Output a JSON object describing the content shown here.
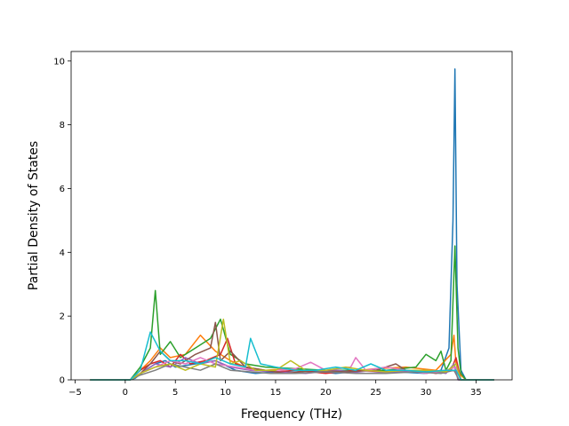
{
  "chart_data": {
    "type": "line",
    "title": "",
    "xlabel": "Frequency (THz)",
    "ylabel": "Partial Density of States",
    "xlim": [
      -5.4,
      38.6
    ],
    "ylim": [
      0,
      10.3
    ],
    "xticks": [
      -5,
      0,
      5,
      10,
      15,
      20,
      25,
      30,
      35
    ],
    "yticks": [
      0,
      2,
      4,
      6,
      8,
      10
    ],
    "xtick_labels": [
      "−5",
      "0",
      "5",
      "10",
      "15",
      "20",
      "25",
      "30",
      "35"
    ],
    "ytick_labels": [
      "0",
      "2",
      "4",
      "6",
      "8",
      "10"
    ],
    "grid": false,
    "legend": "none",
    "colors": [
      "#1f77b4",
      "#ff7f0e",
      "#2ca02c",
      "#d62728",
      "#9467bd",
      "#8c564b",
      "#e377c2",
      "#7f7f7f",
      "#bcbd22",
      "#17becf"
    ],
    "series": [
      {
        "color": "#1f77b4",
        "x": [
          -3.5,
          0.5,
          1.0,
          2.0,
          3.0,
          4.0,
          5.0,
          7.0,
          9.0,
          11.0,
          13.0,
          15.0,
          18.0,
          21.0,
          24.0,
          27.0,
          30.0,
          31.5,
          32.3,
          32.7,
          32.9,
          33.1,
          33.3,
          33.5,
          34.0,
          36.8
        ],
        "y": [
          0,
          0,
          0.05,
          0.3,
          0.5,
          0.6,
          0.4,
          0.5,
          0.6,
          0.3,
          0.2,
          0.25,
          0.3,
          0.2,
          0.3,
          0.25,
          0.2,
          0.3,
          1.0,
          5.0,
          9.75,
          3.0,
          1.6,
          0.3,
          0,
          0
        ]
      },
      {
        "color": "#ff7f0e",
        "x": [
          -3.5,
          0.5,
          1.5,
          2.5,
          3.5,
          4.5,
          6.0,
          7.5,
          9.0,
          10.5,
          12.0,
          14.0,
          16.0,
          19.0,
          22.0,
          25.0,
          28.0,
          31.0,
          32.5,
          32.8,
          33.0,
          33.3,
          34.0,
          36.8
        ],
        "y": [
          0,
          0,
          0.3,
          0.6,
          1.0,
          0.7,
          0.8,
          1.4,
          0.9,
          0.6,
          0.4,
          0.3,
          0.35,
          0.3,
          0.25,
          0.35,
          0.4,
          0.3,
          0.8,
          1.4,
          0.5,
          0.2,
          0,
          0
        ]
      },
      {
        "color": "#2ca02c",
        "x": [
          -3.5,
          0.5,
          1.5,
          2.5,
          3.0,
          3.5,
          4.5,
          5.5,
          7.0,
          8.5,
          9.5,
          10.5,
          12.0,
          14.0,
          17.0,
          20.0,
          23.0,
          26.0,
          29.0,
          30.0,
          31.0,
          31.5,
          32.0,
          32.5,
          32.9,
          33.2,
          33.5,
          34.0,
          36.8
        ],
        "y": [
          0,
          0,
          0.4,
          1.0,
          2.8,
          0.8,
          1.2,
          0.7,
          1.0,
          1.3,
          1.9,
          0.8,
          0.5,
          0.4,
          0.35,
          0.3,
          0.3,
          0.3,
          0.4,
          0.8,
          0.6,
          0.9,
          0.3,
          0.6,
          4.2,
          1.0,
          0.2,
          0,
          0
        ]
      },
      {
        "color": "#d62728",
        "x": [
          -3.5,
          0.5,
          1.5,
          2.5,
          3.5,
          4.5,
          5.5,
          6.5,
          8.0,
          9.5,
          10.2,
          11.0,
          13.0,
          15.0,
          17.0,
          20.0,
          23.0,
          26.0,
          29.0,
          31.0,
          32.5,
          33.0,
          33.5,
          36.8
        ],
        "y": [
          0,
          0,
          0.3,
          0.5,
          0.6,
          0.4,
          0.8,
          0.5,
          0.6,
          0.8,
          1.3,
          0.5,
          0.3,
          0.25,
          0.3,
          0.2,
          0.3,
          0.25,
          0.3,
          0.2,
          0.3,
          0.7,
          0,
          0
        ]
      },
      {
        "color": "#9467bd",
        "x": [
          -3.5,
          0.5,
          1.5,
          3.0,
          4.5,
          6.0,
          7.5,
          9.0,
          10.5,
          12.5,
          15.0,
          18.0,
          21.0,
          24.0,
          27.0,
          30.0,
          32.0,
          32.8,
          33.2,
          36.8
        ],
        "y": [
          0,
          0,
          0.2,
          0.5,
          0.4,
          0.7,
          0.5,
          0.6,
          0.4,
          0.3,
          0.25,
          0.2,
          0.3,
          0.2,
          0.25,
          0.3,
          0.2,
          0.5,
          0,
          0
        ]
      },
      {
        "color": "#8c564b",
        "x": [
          -3.5,
          0.5,
          1.5,
          2.5,
          3.5,
          4.5,
          5.5,
          7.0,
          8.5,
          9.0,
          9.5,
          10.5,
          12.0,
          14.0,
          16.0,
          19.0,
          22.0,
          25.0,
          27.0,
          28.0,
          30.0,
          32.0,
          33.0,
          33.5,
          36.8
        ],
        "y": [
          0,
          0,
          0.2,
          0.5,
          0.9,
          0.6,
          0.5,
          0.8,
          1.0,
          1.8,
          0.6,
          0.9,
          0.4,
          0.3,
          0.2,
          0.3,
          0.25,
          0.3,
          0.5,
          0.3,
          0.25,
          0.3,
          0.3,
          0,
          0
        ]
      },
      {
        "color": "#e377c2",
        "x": [
          -3.5,
          0.5,
          1.5,
          3.0,
          4.5,
          6.0,
          7.5,
          9.0,
          11.0,
          13.0,
          15.0,
          17.0,
          18.5,
          20.0,
          22.5,
          23.0,
          24.0,
          26.0,
          28.0,
          30.0,
          32.0,
          33.0,
          33.5,
          36.8
        ],
        "y": [
          0,
          0,
          0.2,
          0.4,
          0.6,
          0.5,
          0.7,
          0.5,
          0.4,
          0.3,
          0.3,
          0.35,
          0.55,
          0.3,
          0.4,
          0.7,
          0.3,
          0.4,
          0.3,
          0.2,
          0.3,
          0.4,
          0,
          0
        ]
      },
      {
        "color": "#7f7f7f",
        "x": [
          -3.5,
          0.5,
          1.5,
          3.0,
          4.5,
          6.0,
          7.5,
          9.0,
          10.5,
          12.5,
          14.5,
          17.0,
          20.0,
          23.0,
          26.0,
          29.0,
          31.5,
          32.8,
          33.3,
          36.8
        ],
        "y": [
          0,
          0,
          0.15,
          0.3,
          0.5,
          0.4,
          0.3,
          0.5,
          0.3,
          0.25,
          0.2,
          0.2,
          0.25,
          0.2,
          0.2,
          0.25,
          0.2,
          0.3,
          0,
          0
        ]
      },
      {
        "color": "#bcbd22",
        "x": [
          -3.5,
          0.5,
          1.5,
          3.0,
          4.5,
          6.0,
          7.5,
          9.0,
          9.8,
          10.5,
          11.5,
          13.0,
          15.0,
          16.5,
          18.0,
          20.0,
          22.0,
          24.0,
          26.0,
          28.0,
          30.0,
          32.0,
          33.0,
          33.5,
          36.8
        ],
        "y": [
          0,
          0,
          0.2,
          0.4,
          0.5,
          0.3,
          0.5,
          0.4,
          1.9,
          0.5,
          0.6,
          0.3,
          0.3,
          0.6,
          0.3,
          0.3,
          0.4,
          0.3,
          0.25,
          0.3,
          0.3,
          0.25,
          0.5,
          0,
          0
        ]
      },
      {
        "color": "#17becf",
        "x": [
          -3.5,
          0.5,
          1.5,
          2.5,
          3.5,
          4.5,
          6.0,
          7.5,
          9.0,
          10.5,
          12.0,
          12.5,
          13.5,
          15.0,
          17.0,
          19.0,
          21.0,
          23.0,
          24.5,
          26.0,
          28.0,
          30.0,
          32.0,
          33.0,
          33.5,
          36.8
        ],
        "y": [
          0,
          0,
          0.3,
          1.5,
          0.9,
          0.6,
          0.6,
          0.5,
          0.7,
          0.5,
          0.4,
          1.3,
          0.5,
          0.4,
          0.3,
          0.3,
          0.4,
          0.3,
          0.5,
          0.3,
          0.3,
          0.25,
          0.3,
          0.3,
          0,
          0
        ]
      }
    ]
  }
}
